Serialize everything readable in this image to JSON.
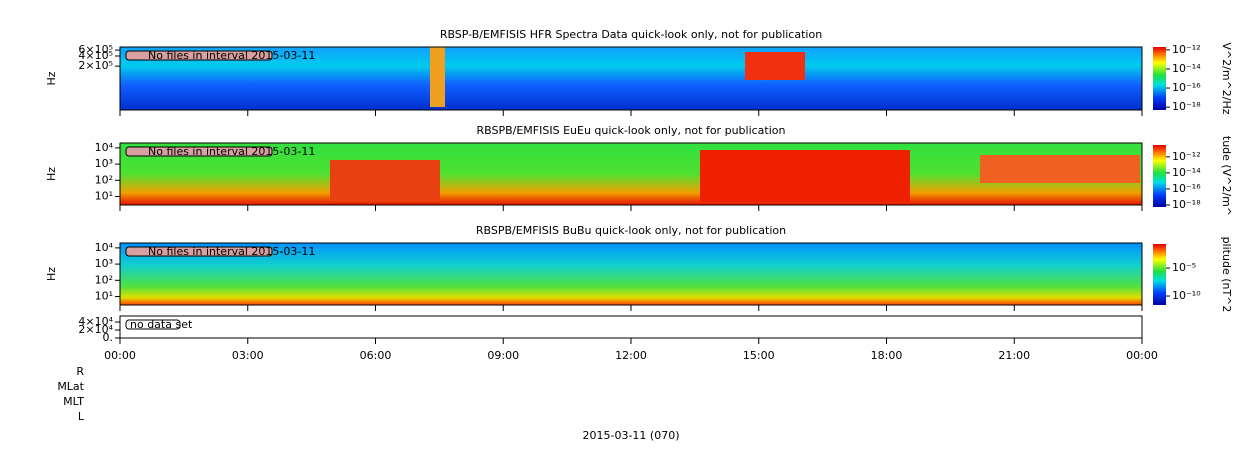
{
  "chart_data": [
    {
      "type": "spectrogram",
      "title": "RBSP-B/EMFISIS  HFR Spectra Data quick-look only, not for publication",
      "ylabel": "Hz",
      "log_y": true,
      "ylim": [
        10000,
        740000
      ],
      "yticks": [
        {
          "value": 600000,
          "label": "6×10⁵"
        },
        {
          "value": 400000,
          "label": "4×10⁵"
        },
        {
          "value": 200000,
          "label": "2×10⁵"
        }
      ],
      "annotation": "No files in interval 2015-03-11",
      "colorbar_label": "V^2/m^2/Hz",
      "clim": [
        5e-19,
        2e-12
      ],
      "cticks": [
        {
          "value": 1e-12,
          "label": "10⁻¹²"
        },
        {
          "value": 1e-14,
          "label": "10⁻¹⁴"
        },
        {
          "value": 1e-16,
          "label": "10⁻¹⁶"
        },
        {
          "value": 1e-18,
          "label": "10⁻¹⁸"
        }
      ]
    },
    {
      "type": "spectrogram",
      "title": "RBSPB/EMFISIS  EuEu quick-look only, not for publication",
      "ylabel": "Hz",
      "log_y": true,
      "ylim": [
        3,
        20000
      ],
      "yticks": [
        {
          "value": 10000,
          "label": "10⁴"
        },
        {
          "value": 1000,
          "label": "10³"
        },
        {
          "value": 100,
          "label": "10²"
        },
        {
          "value": 10,
          "label": "10¹"
        }
      ],
      "annotation": "No files in interval 2015-03-11",
      "colorbar_label": "tude (V^2/m^",
      "clim": [
        5.6e-19,
        3e-11
      ],
      "cticks": [
        {
          "value": 1e-12,
          "label": "10⁻¹²"
        },
        {
          "value": 1e-14,
          "label": "10⁻¹⁴"
        },
        {
          "value": 1e-16,
          "label": "10⁻¹⁶"
        },
        {
          "value": 1e-18,
          "label": "10⁻¹⁸"
        }
      ]
    },
    {
      "type": "spectrogram",
      "title": "RBSPB/EMFISIS  BuBu quick-look only, not for publication",
      "ylabel": "Hz",
      "log_y": true,
      "ylim": [
        3,
        20000
      ],
      "yticks": [
        {
          "value": 10000,
          "label": "10⁴"
        },
        {
          "value": 1000,
          "label": "10³"
        },
        {
          "value": 100,
          "label": "10²"
        },
        {
          "value": 10,
          "label": "10¹"
        }
      ],
      "annotation": "No files in interval 2015-03-11",
      "colorbar_label": "plitude (nT^2",
      "clim": [
        2.5e-12,
        0.2
      ],
      "cticks": [
        {
          "value": 1e-05,
          "label": "10⁻⁵"
        },
        {
          "value": 1e-10,
          "label": "10⁻¹⁰"
        }
      ]
    },
    {
      "type": "empty",
      "log_y": false,
      "ylim": [
        0,
        55000
      ],
      "yticks": [
        {
          "value": 40000,
          "label": "4×10⁴"
        },
        {
          "value": 20000,
          "label": "2×10⁴"
        },
        {
          "value": 0,
          "label": "0."
        }
      ],
      "annotation": "no data set",
      "xlim": [
        0,
        24
      ],
      "xticks": [
        {
          "value": 0,
          "label": "00:00"
        },
        {
          "value": 3,
          "label": "03:00"
        },
        {
          "value": 6,
          "label": "06:00"
        },
        {
          "value": 9,
          "label": "09:00"
        },
        {
          "value": 12,
          "label": "12:00"
        },
        {
          "value": 15,
          "label": "15:00"
        },
        {
          "value": 18,
          "label": "18:00"
        },
        {
          "value": 21,
          "label": "21:00"
        },
        {
          "value": 24,
          "label": "00:00"
        }
      ],
      "row_labels": [
        "R",
        "MLat",
        "MLT",
        "L"
      ],
      "xlabel": "2015-03-11 (070)"
    }
  ]
}
